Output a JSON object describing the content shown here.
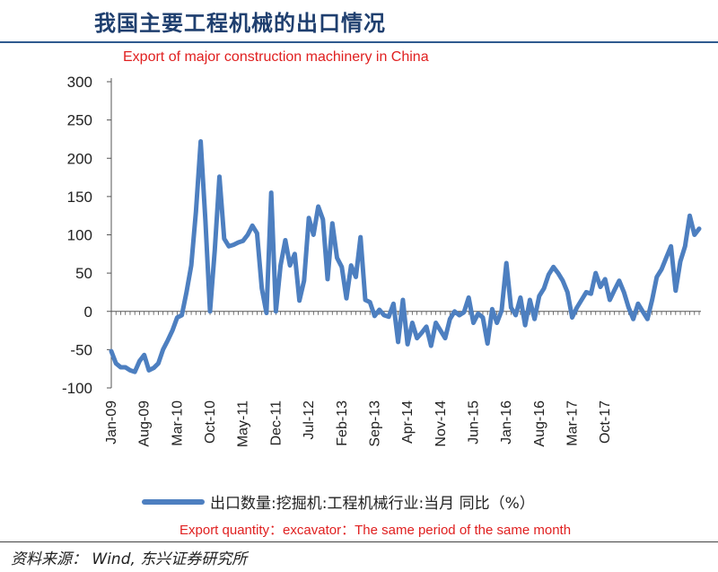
{
  "page": {
    "title": "我国主要工程机械的出口情况",
    "subtitle_en": "Export of major construction machinery in China",
    "legend_en": "Export quantity：excavator：The same period of the same month",
    "source": "资料来源： Wind, 东兴证券研究所"
  },
  "colors": {
    "series": "#4d7fc0",
    "title": "#1f3f6f",
    "annotation": "#e02020"
  },
  "chart_data": {
    "type": "line",
    "title": "",
    "xlabel": "",
    "ylabel": "",
    "ylim": [
      -100,
      300
    ],
    "yticks": [
      -100,
      -50,
      0,
      50,
      100,
      150,
      200,
      250,
      300
    ],
    "xtick_labels": [
      "Jan-09",
      "Aug-09",
      "Mar-10",
      "Oct-10",
      "May-11",
      "Dec-11",
      "Jul-12",
      "Feb-13",
      "Sep-13",
      "Apr-14",
      "Nov-14",
      "Jun-15",
      "Jan-16",
      "Aug-16",
      "Mar-17",
      "Oct-17"
    ],
    "grid": false,
    "legend": "bottom",
    "series": [
      {
        "name": "出口数量:挖掘机:工程机械行业:当月 同比（%）",
        "start": "Jan-09",
        "frequency": "monthly",
        "values": [
          -52,
          -68,
          -73,
          -73,
          -77,
          -79,
          -65,
          -57,
          -77,
          -74,
          -68,
          -50,
          -38,
          -25,
          -8,
          -5,
          25,
          60,
          130,
          222,
          120,
          0,
          80,
          176,
          95,
          85,
          87,
          90,
          92,
          100,
          112,
          102,
          30,
          -2,
          155,
          0,
          60,
          93,
          60,
          75,
          14,
          40,
          122,
          100,
          137,
          120,
          42,
          115,
          70,
          58,
          17,
          60,
          45,
          97,
          15,
          12,
          -6,
          2,
          -5,
          -7,
          10,
          -40,
          15,
          -43,
          -15,
          -35,
          -28,
          -20,
          -45,
          -15,
          -25,
          -35,
          -10,
          0,
          -5,
          -1,
          18,
          -15,
          -3,
          -8,
          -42,
          3,
          -15,
          1,
          63,
          5,
          -5,
          18,
          -18,
          15,
          -10,
          20,
          30,
          48,
          58,
          50,
          40,
          25,
          -8,
          5,
          15,
          25,
          23,
          50,
          32,
          42,
          15,
          28,
          40,
          25,
          5,
          -10,
          10,
          0,
          -10,
          15,
          45,
          55,
          70,
          85,
          27,
          65,
          85,
          125,
          100,
          108
        ]
      }
    ]
  }
}
